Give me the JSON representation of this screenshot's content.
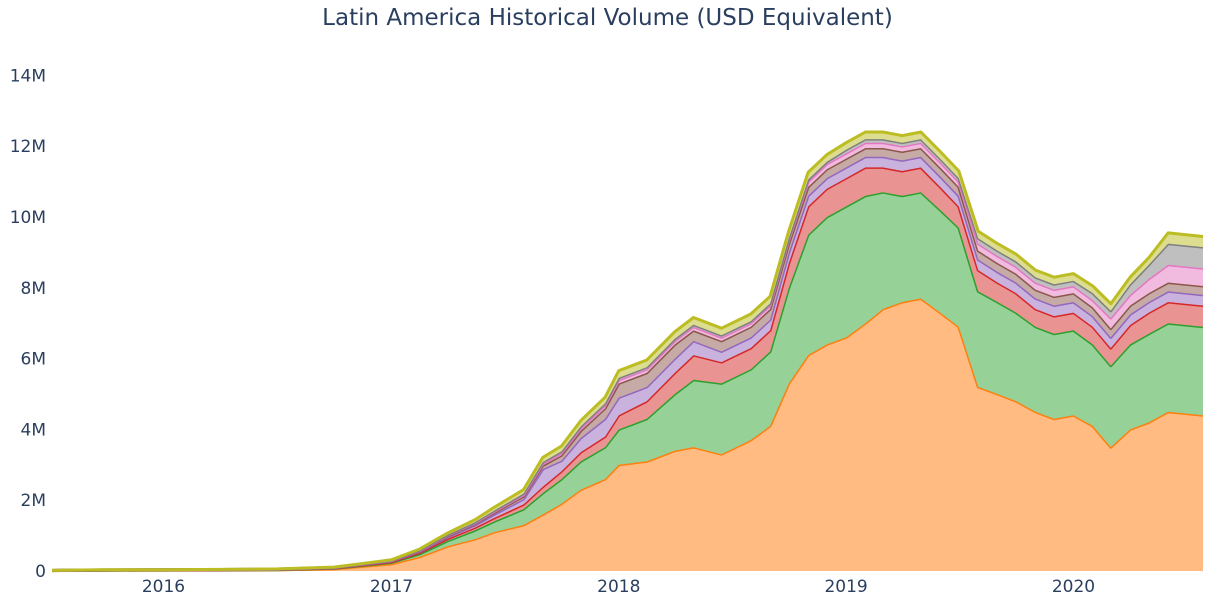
{
  "title": "Latin America Historical Volume (USD Equivalent)",
  "chart_data": {
    "type": "area",
    "stacked": true,
    "title": "Latin America Historical Volume (USD Equivalent)",
    "xlabel": "",
    "ylabel": "",
    "xlim": [
      "2015-07-06",
      "2020-07-27"
    ],
    "ylim": [
      0,
      15000000
    ],
    "x_ticks": [
      {
        "label": "2016",
        "date": "2016-01-01"
      },
      {
        "label": "2017",
        "date": "2017-01-01"
      },
      {
        "label": "2018",
        "date": "2018-01-01"
      },
      {
        "label": "2019",
        "date": "2019-01-01"
      },
      {
        "label": "2020",
        "date": "2020-01-01"
      }
    ],
    "y_ticks": [
      {
        "label": "0",
        "value": 0
      },
      {
        "label": "2M",
        "value": 2000000
      },
      {
        "label": "4M",
        "value": 4000000
      },
      {
        "label": "6M",
        "value": 6000000
      },
      {
        "label": "8M",
        "value": 8000000
      },
      {
        "label": "10M",
        "value": 10000000
      },
      {
        "label": "12M",
        "value": 12000000
      },
      {
        "label": "14M",
        "value": 14000000
      }
    ],
    "grid": false,
    "legend": "none",
    "x": [
      "2015-07-06",
      "2015-08-01",
      "2015-10-01",
      "2016-01-01",
      "2016-04-01",
      "2016-07-01",
      "2016-10-01",
      "2017-01-01",
      "2017-02-15",
      "2017-04-01",
      "2017-05-15",
      "2017-06-15",
      "2017-08-01",
      "2017-09-01",
      "2017-10-01",
      "2017-11-01",
      "2017-12-10",
      "2018-01-01",
      "2018-02-15",
      "2018-04-01",
      "2018-05-01",
      "2018-06-15",
      "2018-08-01",
      "2018-09-01",
      "2018-10-01",
      "2018-11-01",
      "2018-12-01",
      "2019-01-01",
      "2019-02-01",
      "2019-03-01",
      "2019-04-01",
      "2019-05-01",
      "2019-06-01",
      "2019-07-01",
      "2019-08-01",
      "2019-09-01",
      "2019-10-01",
      "2019-11-01",
      "2019-12-01",
      "2020-01-01",
      "2020-02-01",
      "2020-03-01",
      "2020-04-01",
      "2020-05-01",
      "2020-06-01",
      "2020-07-27"
    ],
    "series": [
      {
        "color": "#ff7f0e",
        "fill": "#ffbb82",
        "values": [
          10000,
          15000,
          20000,
          20000,
          25000,
          30000,
          60000,
          200000,
          400000,
          700000,
          900000,
          1100000,
          1300000,
          1600000,
          1900000,
          2300000,
          2600000,
          3000000,
          3100000,
          3400000,
          3500000,
          3300000,
          3700000,
          4100000,
          5300000,
          6100000,
          6400000,
          6600000,
          7000000,
          7400000,
          7600000,
          7700000,
          7300000,
          6900000,
          5200000,
          5000000,
          4800000,
          4500000,
          4300000,
          4400000,
          4100000,
          3500000,
          4000000,
          4200000,
          4500000,
          4400000
        ]
      },
      {
        "color": "#2ca02c",
        "fill": "#96d197",
        "values": [
          2000,
          3000,
          4000,
          5000,
          6000,
          8000,
          15000,
          40000,
          80000,
          150000,
          250000,
          300000,
          450000,
          600000,
          700000,
          800000,
          900000,
          1000000,
          1200000,
          1600000,
          1900000,
          2000000,
          2000000,
          2100000,
          2700000,
          3400000,
          3600000,
          3700000,
          3600000,
          3300000,
          3000000,
          3000000,
          2900000,
          2800000,
          2700000,
          2600000,
          2500000,
          2400000,
          2400000,
          2400000,
          2300000,
          2300000,
          2400000,
          2500000,
          2500000,
          2500000
        ]
      },
      {
        "color": "#d62728",
        "fill": "#ea9393",
        "values": [
          1000,
          2000,
          2000,
          3000,
          4000,
          5000,
          10000,
          20000,
          40000,
          60000,
          80000,
          100000,
          130000,
          180000,
          220000,
          260000,
          300000,
          400000,
          500000,
          600000,
          700000,
          600000,
          600000,
          600000,
          700000,
          800000,
          800000,
          800000,
          800000,
          700000,
          700000,
          700000,
          650000,
          600000,
          600000,
          550000,
          550000,
          500000,
          500000,
          500000,
          500000,
          500000,
          550000,
          600000,
          600000,
          600000
        ]
      },
      {
        "color": "#9467bd",
        "fill": "#c9b3de",
        "values": [
          1000,
          2000,
          2000,
          3000,
          3000,
          4000,
          8000,
          20000,
          30000,
          50000,
          70000,
          100000,
          150000,
          500000,
          300000,
          400000,
          500000,
          500000,
          400000,
          400000,
          400000,
          300000,
          300000,
          300000,
          300000,
          300000,
          300000,
          300000,
          300000,
          300000,
          300000,
          300000,
          300000,
          300000,
          300000,
          300000,
          300000,
          300000,
          300000,
          300000,
          300000,
          300000,
          300000,
          300000,
          300000,
          300000
        ]
      },
      {
        "color": "#8c564b",
        "fill": "#c5aaa5",
        "values": [
          1000,
          1000,
          1000,
          2000,
          2000,
          3000,
          5000,
          10000,
          20000,
          30000,
          40000,
          50000,
          80000,
          100000,
          150000,
          200000,
          300000,
          400000,
          400000,
          400000,
          300000,
          300000,
          300000,
          300000,
          250000,
          250000,
          250000,
          250000,
          250000,
          250000,
          250000,
          250000,
          250000,
          250000,
          250000,
          250000,
          250000,
          250000,
          250000,
          250000,
          250000,
          250000,
          250000,
          250000,
          250000,
          250000
        ]
      },
      {
        "color": "#e377c2",
        "fill": "#f1bbe0",
        "values": [
          500,
          1000,
          1000,
          1000,
          1000,
          2000,
          3000,
          5000,
          10000,
          15000,
          20000,
          30000,
          40000,
          50000,
          60000,
          70000,
          80000,
          100000,
          100000,
          100000,
          100000,
          100000,
          100000,
          100000,
          100000,
          150000,
          150000,
          150000,
          150000,
          150000,
          150000,
          150000,
          150000,
          150000,
          200000,
          200000,
          200000,
          200000,
          200000,
          200000,
          200000,
          300000,
          300000,
          400000,
          500000,
          500000
        ]
      },
      {
        "color": "#7f7f7f",
        "fill": "#bfbfbf",
        "values": [
          500,
          500,
          500,
          1000,
          1000,
          1000,
          2000,
          5000,
          10000,
          15000,
          20000,
          30000,
          40000,
          50000,
          50000,
          60000,
          60000,
          60000,
          60000,
          60000,
          60000,
          60000,
          60000,
          60000,
          60000,
          60000,
          60000,
          100000,
          100000,
          100000,
          100000,
          100000,
          100000,
          100000,
          150000,
          150000,
          150000,
          150000,
          150000,
          150000,
          200000,
          200000,
          300000,
          400000,
          600000,
          600000
        ]
      },
      {
        "color": "#bcbd22",
        "fill": "#dddd90",
        "values": [
          1000,
          2000,
          2000,
          3000,
          4000,
          5000,
          8000,
          15000,
          30000,
          50000,
          70000,
          90000,
          110000,
          130000,
          150000,
          160000,
          170000,
          200000,
          200000,
          200000,
          200000,
          200000,
          200000,
          200000,
          200000,
          200000,
          200000,
          200000,
          200000,
          200000,
          200000,
          200000,
          200000,
          200000,
          200000,
          200000,
          200000,
          200000,
          200000,
          200000,
          200000,
          200000,
          200000,
          200000,
          300000,
          300000
        ]
      }
    ]
  }
}
